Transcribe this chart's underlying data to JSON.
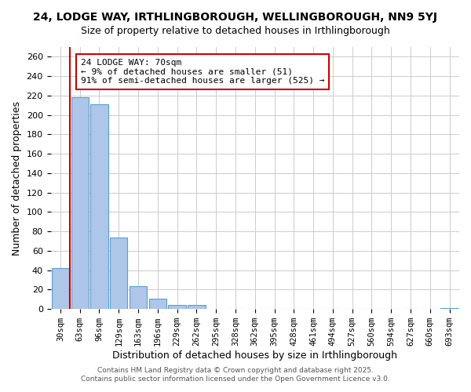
{
  "title": "24, LODGE WAY, IRTHLINGBOROUGH, WELLINGBOROUGH, NN9 5YJ",
  "subtitle": "Size of property relative to detached houses in Irthlingborough",
  "xlabel": "Distribution of detached houses by size in Irthlingborough",
  "ylabel": "Number of detached properties",
  "bar_labels": [
    "30sqm",
    "63sqm",
    "96sqm",
    "129sqm",
    "163sqm",
    "196sqm",
    "229sqm",
    "262sqm",
    "295sqm",
    "328sqm",
    "362sqm",
    "395sqm",
    "428sqm",
    "461sqm",
    "494sqm",
    "527sqm",
    "560sqm",
    "594sqm",
    "627sqm",
    "660sqm",
    "693sqm"
  ],
  "bar_values": [
    42,
    218,
    211,
    74,
    24,
    11,
    4,
    4,
    0,
    0,
    0,
    0,
    0,
    0,
    0,
    0,
    0,
    0,
    0,
    0,
    1
  ],
  "bar_color": "#aec6e8",
  "bar_edge_color": "#5a9fd4",
  "ylim": [
    0,
    270
  ],
  "yticks": [
    0,
    20,
    40,
    60,
    80,
    100,
    120,
    140,
    160,
    180,
    200,
    220,
    240,
    260
  ],
  "vline_x": 0.5,
  "vline_color": "#cc0000",
  "annotation_title": "24 LODGE WAY: 70sqm",
  "annotation_line2": "← 9% of detached houses are smaller (51)",
  "annotation_line3": "91% of semi-detached houses are larger (525) →",
  "annotation_box_color": "#ffffff",
  "annotation_box_edge": "#cc0000",
  "footer1": "Contains HM Land Registry data © Crown copyright and database right 2025.",
  "footer2": "Contains public sector information licensed under the Open Government Licence v3.0.",
  "background_color": "#ffffff",
  "grid_color": "#cccccc",
  "figsize": [
    6.0,
    5.0
  ],
  "dpi": 100
}
